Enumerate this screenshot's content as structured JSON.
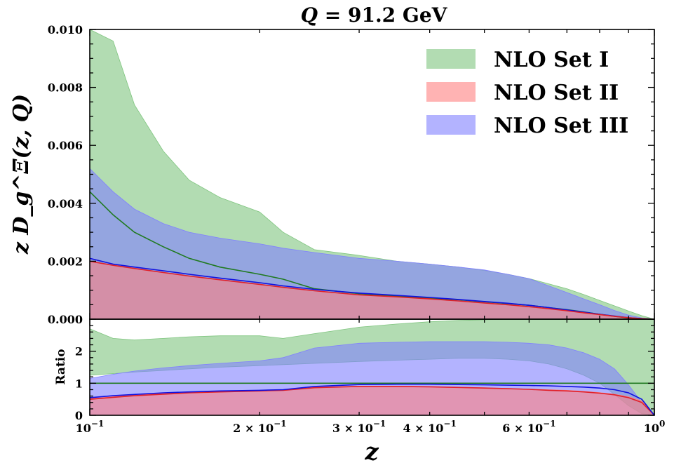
{
  "chart_data": {
    "type": "area",
    "title": "Q = 91.2 GeV",
    "title_parts": [
      "Q",
      " = 91.2 GeV"
    ],
    "xlabel": "z",
    "ylabel": "z D_g^Ξ(z, Q)",
    "xscale": "log",
    "xlim": [
      0.1,
      1.0
    ],
    "colors": {
      "set1": "#7fc57f",
      "set2": "#ff8080",
      "set3": "#8080ff",
      "central1": "#207a20",
      "central2": "#e0202a",
      "central3": "#1010e0",
      "ratio_ref": "#207a20"
    },
    "x": [
      0.1,
      0.11,
      0.12,
      0.135,
      0.15,
      0.17,
      0.2,
      0.22,
      0.25,
      0.3,
      0.35,
      0.4,
      0.45,
      0.5,
      0.55,
      0.6,
      0.65,
      0.7,
      0.75,
      0.8,
      0.85,
      0.9,
      0.95,
      1.0
    ],
    "main_panel": {
      "ylim": [
        0,
        0.01
      ],
      "yticks": [
        "0.000",
        "0.002",
        "0.004",
        "0.006",
        "0.008",
        "0.010"
      ],
      "series": [
        {
          "name": "NLO Set I",
          "upper": [
            0.0105,
            0.0096,
            0.0074,
            0.0058,
            0.0048,
            0.0042,
            0.0037,
            0.003,
            0.0024,
            0.0022,
            0.002,
            0.0019,
            0.0018,
            0.00168,
            0.00155,
            0.0014,
            0.00122,
            0.00105,
            0.00085,
            0.00065,
            0.00046,
            0.00028,
            0.00012,
            0.0
          ],
          "lower": [
            0,
            0,
            0,
            0,
            0,
            0,
            0,
            0,
            0,
            0,
            0,
            0,
            0,
            0,
            0,
            0,
            0,
            0,
            0,
            0,
            0,
            0,
            0,
            0
          ],
          "central": [
            0.0044,
            0.0036,
            0.003,
            0.0025,
            0.0021,
            0.0018,
            0.00155,
            0.00138,
            0.00105,
            0.00088,
            0.0008,
            0.00073,
            0.00067,
            0.0006,
            0.00054,
            0.00048,
            0.0004,
            0.00033,
            0.00025,
            0.00017,
            0.0001,
            4e-05,
            1e-05,
            0.0
          ]
        },
        {
          "name": "NLO Set II",
          "upper": [
            0.002,
            0.00186,
            0.00175,
            0.00161,
            0.00149,
            0.00136,
            0.0012,
            0.0011,
            0.00098,
            0.00084,
            0.00077,
            0.0007,
            0.00063,
            0.00056,
            0.0005,
            0.00043,
            0.00036,
            0.00029,
            0.00022,
            0.00016,
            0.0001,
            5e-05,
            2e-05,
            0.0
          ],
          "lower": [
            0,
            0,
            0,
            0,
            0,
            0,
            0,
            0,
            0,
            0,
            0,
            0,
            0,
            0,
            0,
            0,
            0,
            0,
            0,
            0,
            0,
            0,
            0,
            0
          ],
          "central": [
            0.002,
            0.00186,
            0.00175,
            0.00161,
            0.00149,
            0.00136,
            0.0012,
            0.0011,
            0.00098,
            0.00084,
            0.00077,
            0.0007,
            0.00063,
            0.00056,
            0.0005,
            0.00043,
            0.00036,
            0.00029,
            0.00022,
            0.00016,
            0.0001,
            5e-05,
            2e-05,
            0.0
          ]
        },
        {
          "name": "NLO Set III",
          "upper": [
            0.0052,
            0.0044,
            0.0038,
            0.0033,
            0.003,
            0.0028,
            0.0026,
            0.00245,
            0.0023,
            0.0021,
            0.002,
            0.0019,
            0.0018,
            0.0017,
            0.00155,
            0.0014,
            0.00115,
            0.00092,
            0.0007,
            0.0005,
            0.0003,
            0.00014,
            4e-05,
            0.0
          ],
          "lower": [
            0,
            0,
            0,
            0,
            0,
            0,
            0,
            0,
            0,
            0,
            0,
            0,
            0,
            0,
            0,
            0,
            0,
            0,
            0,
            0,
            0,
            0,
            0,
            0
          ],
          "central": [
            0.0021,
            0.0019,
            0.0018,
            0.00167,
            0.00155,
            0.00142,
            0.00126,
            0.00115,
            0.00103,
            0.0009,
            0.00082,
            0.00075,
            0.00068,
            0.00061,
            0.00055,
            0.00048,
            0.0004,
            0.00032,
            0.00024,
            0.00017,
            0.00011,
            5e-05,
            2e-05,
            0.0
          ]
        }
      ]
    },
    "ratio_panel": {
      "ylabel": "Ratio",
      "ylim": [
        0,
        3.0
      ],
      "yticks": [
        "0",
        "1",
        "2"
      ],
      "series": [
        {
          "name": "NLO Set I",
          "upper": [
            2.7,
            2.4,
            2.35,
            2.4,
            2.45,
            2.48,
            2.48,
            2.4,
            2.55,
            2.75,
            2.85,
            2.92,
            2.96,
            2.98,
            3.0,
            3.0,
            3.0,
            3.0,
            3.0,
            3.0,
            3.0,
            3.0,
            3.0,
            3.0
          ],
          "lower": [
            1.25,
            1.3,
            1.35,
            1.4,
            1.45,
            1.5,
            1.55,
            1.58,
            1.62,
            1.68,
            1.72,
            1.75,
            1.78,
            1.78,
            1.75,
            1.7,
            1.6,
            1.45,
            1.25,
            1.0,
            0.65,
            0.3,
            0.05,
            0.0
          ],
          "central": [
            1,
            1,
            1,
            1,
            1,
            1,
            1,
            1,
            1,
            1,
            1,
            1,
            1,
            1,
            1,
            1,
            1,
            1,
            1,
            1,
            1,
            1,
            1,
            1
          ]
        },
        {
          "name": "NLO Set II",
          "upper": [
            0.52,
            0.58,
            0.63,
            0.68,
            0.72,
            0.75,
            0.78,
            0.8,
            0.87,
            0.91,
            0.91,
            0.9,
            0.88,
            0.86,
            0.84,
            0.82,
            0.8,
            0.78,
            0.75,
            0.71,
            0.66,
            0.58,
            0.45,
            0.0
          ],
          "lower": [
            0,
            0,
            0,
            0,
            0,
            0,
            0,
            0,
            0,
            0,
            0,
            0,
            0,
            0,
            0,
            0,
            0,
            0,
            0,
            0,
            0,
            0,
            0,
            0
          ],
          "central": [
            0.5,
            0.56,
            0.61,
            0.66,
            0.7,
            0.73,
            0.76,
            0.78,
            0.86,
            0.9,
            0.9,
            0.89,
            0.87,
            0.85,
            0.83,
            0.81,
            0.78,
            0.76,
            0.73,
            0.69,
            0.64,
            0.55,
            0.4,
            0.0
          ]
        },
        {
          "name": "NLO Set III",
          "upper": [
            1.15,
            1.28,
            1.38,
            1.48,
            1.55,
            1.62,
            1.7,
            1.8,
            2.1,
            2.25,
            2.28,
            2.3,
            2.3,
            2.3,
            2.28,
            2.25,
            2.2,
            2.1,
            1.95,
            1.75,
            1.45,
            0.95,
            0.4,
            0.0
          ],
          "lower": [
            0,
            0,
            0,
            0,
            0,
            0,
            0,
            0,
            0,
            0,
            0,
            0,
            0,
            0,
            0,
            0,
            0,
            0,
            0,
            0,
            0,
            0,
            0,
            0
          ],
          "central": [
            0.55,
            0.61,
            0.65,
            0.7,
            0.73,
            0.76,
            0.78,
            0.8,
            0.9,
            0.96,
            0.97,
            0.97,
            0.96,
            0.95,
            0.94,
            0.93,
            0.92,
            0.9,
            0.88,
            0.85,
            0.8,
            0.7,
            0.5,
            0.0
          ]
        }
      ]
    },
    "xticks": [
      {
        "value": 0.1,
        "base": "10",
        "exp": "−1",
        "prefix": ""
      },
      {
        "value": 0.2,
        "base": "10",
        "exp": "−1",
        "prefix": "2 × "
      },
      {
        "value": 0.3,
        "base": "10",
        "exp": "−1",
        "prefix": "3 × "
      },
      {
        "value": 0.4,
        "base": "10",
        "exp": "−1",
        "prefix": "4 × "
      },
      {
        "value": 0.6,
        "base": "10",
        "exp": "−1",
        "prefix": "6 × "
      },
      {
        "value": 1.0,
        "base": "10",
        "exp": "0",
        "prefix": ""
      }
    ],
    "legend": {
      "position": "top-right",
      "entries": [
        "NLO Set I",
        "NLO Set II",
        "NLO Set III"
      ]
    }
  }
}
